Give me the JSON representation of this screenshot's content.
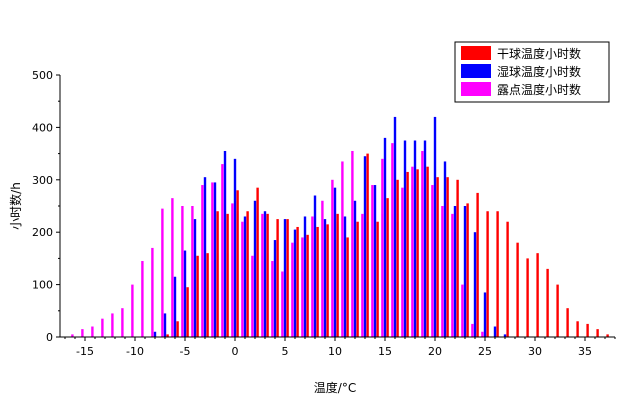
{
  "chart_data": {
    "type": "bar",
    "xlabel": "温度/°C",
    "ylabel": "小时数/h",
    "xlim": [
      -17.5,
      38
    ],
    "ylim": [
      0,
      500
    ],
    "xticks": [
      -15,
      -10,
      -5,
      0,
      5,
      10,
      15,
      20,
      25,
      30,
      35
    ],
    "yticks": [
      0,
      100,
      200,
      300,
      400,
      500
    ],
    "legend_position": "top-right",
    "series": [
      {
        "name": "干球温度小时数",
        "color": "#ff0000",
        "x": [
          -8,
          -7,
          -6,
          -5,
          -4,
          -3,
          -2,
          -1,
          0,
          1,
          2,
          3,
          4,
          5,
          6,
          7,
          8,
          9,
          10,
          11,
          12,
          13,
          14,
          15,
          16,
          17,
          18,
          19,
          20,
          21,
          22,
          23,
          24,
          25,
          26,
          27,
          28,
          29,
          30,
          31,
          32,
          33,
          34,
          35,
          36,
          37
        ],
        "values": [
          1,
          5,
          30,
          95,
          155,
          160,
          240,
          235,
          280,
          240,
          285,
          235,
          225,
          225,
          210,
          195,
          210,
          215,
          235,
          190,
          220,
          350,
          220,
          265,
          300,
          315,
          320,
          325,
          305,
          305,
          300,
          255,
          275,
          240,
          240,
          220,
          180,
          150,
          160,
          130,
          100,
          55,
          30,
          25,
          15,
          5
        ]
      },
      {
        "name": "湿球温度小时数",
        "color": "#0000ff",
        "x": [
          -8,
          -7,
          -6,
          -5,
          -4,
          -3,
          -2,
          -1,
          0,
          1,
          2,
          3,
          4,
          5,
          6,
          7,
          8,
          9,
          10,
          11,
          12,
          13,
          14,
          15,
          16,
          17,
          18,
          19,
          20,
          21,
          22,
          23,
          24,
          25,
          26,
          27
        ],
        "values": [
          10,
          45,
          115,
          165,
          225,
          305,
          295,
          355,
          340,
          230,
          260,
          240,
          185,
          225,
          205,
          230,
          270,
          225,
          285,
          230,
          260,
          345,
          290,
          380,
          420,
          375,
          375,
          375,
          420,
          335,
          250,
          250,
          200,
          85,
          20,
          5
        ]
      },
      {
        "name": "露点温度小时数",
        "color": "#ff00ff",
        "x": [
          -16,
          -15,
          -14,
          -13,
          -12,
          -11,
          -10,
          -9,
          -8,
          -7,
          -6,
          -5,
          -4,
          -3,
          -2,
          -1,
          0,
          1,
          2,
          3,
          4,
          5,
          6,
          7,
          8,
          9,
          10,
          11,
          12,
          13,
          14,
          15,
          16,
          17,
          18,
          19,
          20,
          21,
          22,
          23,
          24,
          25
        ],
        "values": [
          5,
          15,
          20,
          35,
          45,
          55,
          100,
          145,
          170,
          245,
          265,
          250,
          250,
          290,
          295,
          330,
          255,
          220,
          155,
          235,
          145,
          125,
          180,
          190,
          230,
          260,
          300,
          335,
          355,
          235,
          290,
          340,
          370,
          285,
          325,
          355,
          290,
          250,
          235,
          100,
          25,
          10
        ]
      }
    ]
  }
}
